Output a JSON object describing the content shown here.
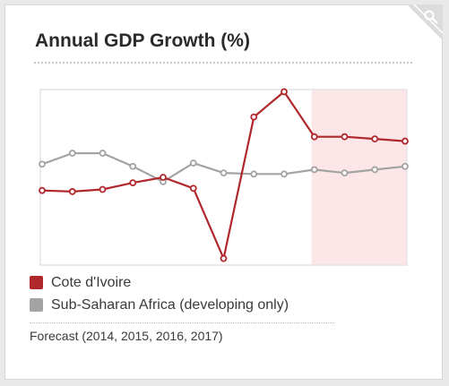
{
  "colors": {
    "cote_divoire": "#b0282c",
    "africa": "#a3a3a3",
    "forecast_band": "#fde6e7",
    "plot_border": "#e4e4e4"
  },
  "widget": {
    "corner_icon": "magnifier-icon"
  },
  "chart_data": {
    "type": "line",
    "title": "Annual GDP Growth (%)",
    "xlabel": "",
    "ylabel": "",
    "x_points": 13,
    "forecast_start_index": 9,
    "forecast_note": "Forecast (2014, 2015, 2016, 2017)",
    "grid": false,
    "legend_placement": "bottom",
    "ylim": [
      -5.5,
      10.5
    ],
    "series": [
      {
        "name": "Cote d'Ivoire",
        "color": "#b0282c",
        "values": [
          1.3,
          1.2,
          1.4,
          2.0,
          2.5,
          1.5,
          -4.9,
          8.0,
          10.3,
          6.2,
          6.2,
          6.0,
          5.8
        ]
      },
      {
        "name": "Sub-Saharan Africa (developing only)",
        "color": "#a3a3a3",
        "values": [
          3.7,
          4.7,
          4.7,
          3.5,
          2.1,
          3.8,
          2.9,
          2.8,
          2.8,
          3.2,
          2.9,
          3.2,
          3.5
        ]
      }
    ]
  }
}
